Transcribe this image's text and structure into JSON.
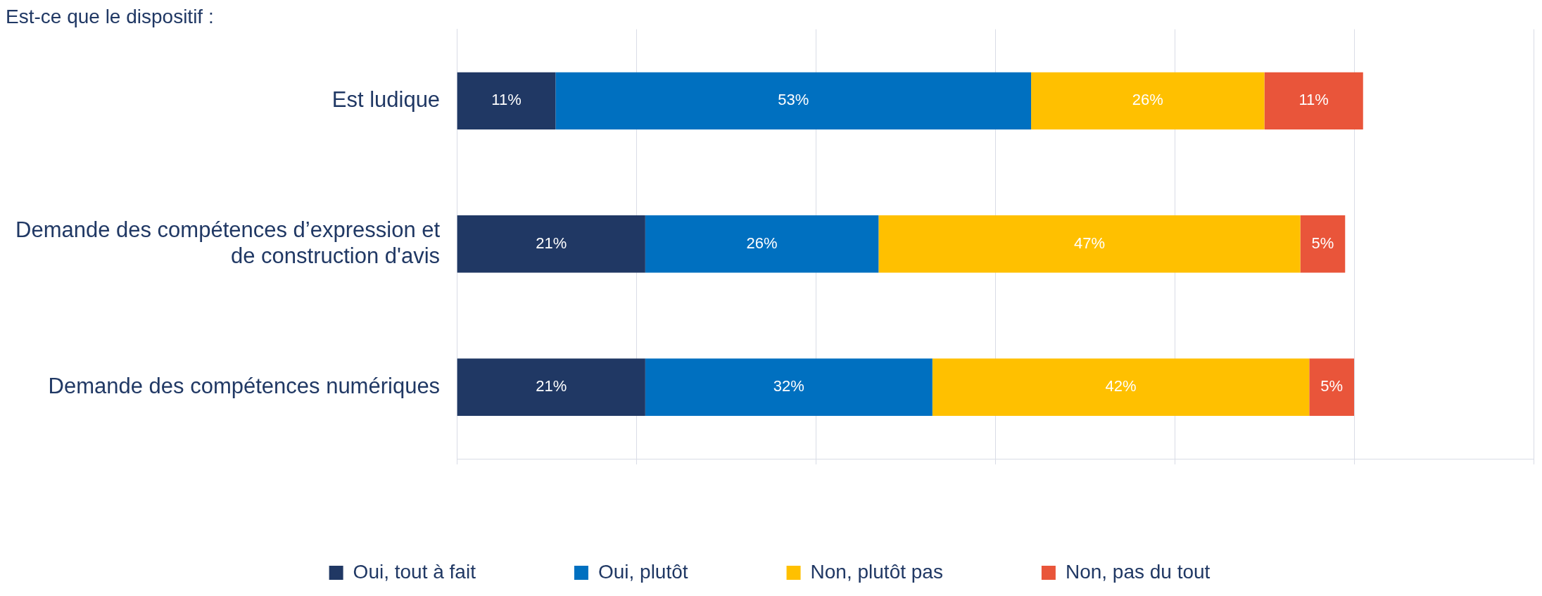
{
  "chart_data": {
    "type": "bar",
    "orientation": "horizontal",
    "stacked": true,
    "title": "Est-ce que le dispositif :",
    "categories": [
      "Est ludique",
      "Demande des compétences d’expression et de construction d'avis",
      "Demande des compétences numériques"
    ],
    "series": [
      {
        "name": "Oui, tout à fait",
        "color": "#203864",
        "values": [
          11,
          21,
          21
        ],
        "value_labels": [
          "11%",
          "21%",
          "21%"
        ]
      },
      {
        "name": "Oui, plutôt",
        "color": "#0070c0",
        "values": [
          53,
          26,
          32
        ],
        "value_labels": [
          "53%",
          "26%",
          "32%"
        ]
      },
      {
        "name": "Non, plutôt pas",
        "color": "#ffc000",
        "values": [
          26,
          47,
          42
        ],
        "value_labels": [
          "26%",
          "47%",
          "42%"
        ]
      },
      {
        "name": "Non, pas du tout",
        "color": "#e9553a",
        "values": [
          11,
          5,
          5
        ],
        "value_labels": [
          "11%",
          "5%",
          "5%"
        ]
      }
    ],
    "tick_labels": "y",
    "grid": "x",
    "legend": "bottom"
  }
}
